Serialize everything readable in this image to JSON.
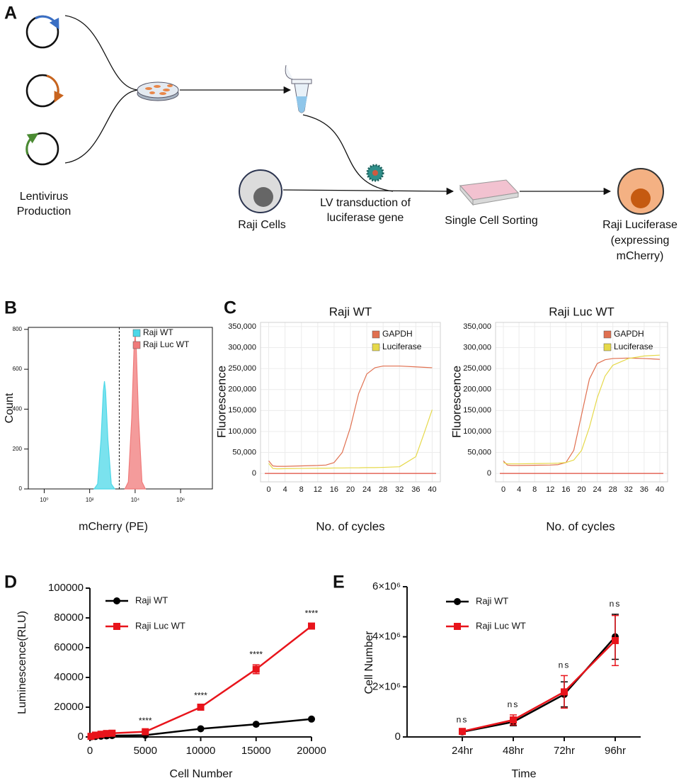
{
  "panel_labels": [
    "A",
    "B",
    "C",
    "D",
    "E"
  ],
  "diagram": {
    "source_label": [
      "Lentivirus",
      "Production"
    ],
    "raji_cells": "Raji Cells",
    "transduction_label": [
      "LV transduction of",
      "luciferase gene"
    ],
    "sorting_label": "Single Cell Sorting",
    "result_label": [
      "Raji Luciferase",
      "(expressing",
      "mCherry)"
    ]
  },
  "chart_data": [
    {
      "type": "density",
      "xlabel": "mCherry (PE)",
      "ylabel": "Count",
      "xscale": "log",
      "xlim": [
        0.2,
        25000000
      ],
      "xticks": [
        {
          "value": 1,
          "label": "10⁰"
        },
        {
          "value": 100,
          "label": "10²"
        },
        {
          "value": 10000,
          "label": "10⁴"
        },
        {
          "value": 1000000,
          "label": "10⁶"
        }
      ],
      "ylim": [
        0,
        810
      ],
      "yticks": [
        0,
        200,
        400,
        600,
        800
      ],
      "gate": 2000,
      "legend": "upper right",
      "series": [
        {
          "name": "Raji WT",
          "color": "#4dd8e8",
          "x": [
            158,
            224,
            316,
            398,
            447,
            501,
            631,
            891,
            1259
          ],
          "values": [
            0,
            25,
            250,
            490,
            540,
            490,
            250,
            25,
            0
          ]
        },
        {
          "name": "Raji Luc WT",
          "color": "#f07a7a",
          "x": [
            3548,
            5012,
            7079,
            8913,
            10000,
            11220,
            14125,
            19953,
            28184
          ],
          "values": [
            0,
            35,
            355,
            700,
            770,
            700,
            355,
            35,
            0
          ]
        }
      ]
    },
    {
      "type": "line",
      "title": "Raji WT",
      "xlabel": "No. of cycles",
      "ylabel": "Fluorescence",
      "xlim": [
        -2,
        42
      ],
      "xticks": [
        0,
        4,
        8,
        12,
        16,
        20,
        24,
        28,
        32,
        36,
        40
      ],
      "ylim": [
        -20000,
        360000
      ],
      "yticks": [
        0,
        {
          "value": 50000,
          "label": "50,000"
        },
        {
          "value": 100000,
          "label": "100,000"
        },
        {
          "value": 150000,
          "label": "150,000"
        },
        {
          "value": 200000,
          "label": "200,000"
        },
        {
          "value": 250000,
          "label": "250,000"
        },
        {
          "value": 300000,
          "label": "300,000"
        },
        {
          "value": 350000,
          "label": "350,000"
        }
      ],
      "grid": true,
      "legend": "upper right",
      "reference_line": 0,
      "reference_color": "#e04a3a",
      "x": [
        0,
        1,
        2,
        4,
        8,
        12,
        14,
        16,
        18,
        20,
        22,
        24,
        26,
        28,
        32,
        36,
        38,
        40
      ],
      "series": [
        {
          "name": "GAPDH",
          "color": "#e07050",
          "values": [
            30000,
            18000,
            17000,
            17000,
            18000,
            19000,
            20000,
            26000,
            50000,
            110000,
            190000,
            237000,
            252000,
            256000,
            256000,
            254000,
            253000,
            252000
          ]
        },
        {
          "name": "Luciferase",
          "color": "#e6d94a",
          "values": [
            24000,
            12000,
            11000,
            11500,
            12000,
            12500,
            12500,
            13000,
            13000,
            13500,
            13500,
            14000,
            14000,
            14500,
            16000,
            40000,
            95000,
            152000
          ]
        }
      ]
    },
    {
      "type": "line",
      "title": "Raji Luc WT",
      "xlabel": "No. of cycles",
      "ylabel": "Fluorescence",
      "xlim": [
        -2,
        42
      ],
      "xticks": [
        0,
        4,
        8,
        12,
        16,
        20,
        24,
        28,
        32,
        36,
        40
      ],
      "ylim": [
        -20000,
        360000
      ],
      "yticks": [
        0,
        {
          "value": 50000,
          "label": "50,000"
        },
        {
          "value": 100000,
          "label": "100,000"
        },
        {
          "value": 150000,
          "label": "150,000"
        },
        {
          "value": 200000,
          "label": "200,000"
        },
        {
          "value": 250000,
          "label": "250,000"
        },
        {
          "value": 300000,
          "label": "300,000"
        },
        {
          "value": 350000,
          "label": "350,000"
        }
      ],
      "grid": true,
      "legend": "upper right",
      "reference_line": 0,
      "reference_color": "#e04a3a",
      "x": [
        0,
        1,
        2,
        4,
        8,
        12,
        14,
        16,
        18,
        20,
        22,
        24,
        26,
        28,
        32,
        36,
        38,
        40
      ],
      "series": [
        {
          "name": "GAPDH",
          "color": "#e07050",
          "values": [
            30000,
            20000,
            19000,
            19000,
            19500,
            20000,
            21000,
            26000,
            55000,
            140000,
            225000,
            262000,
            271000,
            274000,
            275000,
            274000,
            273000,
            272000
          ]
        },
        {
          "name": "Luciferase",
          "color": "#e6d94a",
          "values": [
            26000,
            23000,
            23000,
            23000,
            23500,
            24000,
            24500,
            26000,
            32000,
            55000,
            110000,
            180000,
            232000,
            258000,
            274000,
            280000,
            281000,
            282000
          ]
        }
      ]
    },
    {
      "type": "line",
      "xlabel": "Cell Number",
      "ylabel": "Luminescence(RLU)",
      "xlim": [
        0,
        20000
      ],
      "xticks": [
        0,
        5000,
        10000,
        15000,
        20000
      ],
      "ylim": [
        0,
        100000
      ],
      "yticks": [
        0,
        20000,
        40000,
        60000,
        80000,
        100000
      ],
      "legend": "upper left",
      "x": [
        100,
        500,
        1000,
        1500,
        2000,
        5000,
        10000,
        15000,
        20000
      ],
      "annotations": [
        null,
        null,
        null,
        null,
        null,
        "****",
        "****",
        "****",
        "****"
      ],
      "series": [
        {
          "name": "Raji WT",
          "color": "#000000",
          "marker": "circle",
          "values": [
            100,
            300,
            500,
            700,
            900,
            1200,
            5500,
            8500,
            12000
          ]
        },
        {
          "name": "Raji Luc WT",
          "color": "#e8141b",
          "marker": "square",
          "values": [
            400,
            1200,
            1800,
            2300,
            2500,
            3500,
            20000,
            45500,
            74500
          ],
          "errors": [
            200,
            300,
            300,
            300,
            300,
            400,
            800,
            3000,
            1500
          ]
        }
      ]
    },
    {
      "type": "line",
      "xlabel": "Time",
      "ylabel": "Cell Number",
      "categories": [
        "24hr",
        "48hr",
        "72hr",
        "96hr"
      ],
      "ylim": [
        0,
        6000000
      ],
      "yticks": [
        0,
        {
          "value": 2000000,
          "label": "2×10⁶"
        },
        {
          "value": 4000000,
          "label": "4×10⁶"
        },
        {
          "value": 6000000,
          "label": "6×10⁶"
        }
      ],
      "legend": "upper left",
      "annotations": [
        "ns",
        "ns",
        "ns",
        "ns"
      ],
      "series": [
        {
          "name": "Raji WT",
          "color": "#000000",
          "marker": "circle",
          "values": [
            200000,
            600000,
            1700000,
            4000000
          ],
          "errors": [
            50000,
            150000,
            500000,
            900000
          ]
        },
        {
          "name": "Raji Luc WT",
          "color": "#e8141b",
          "marker": "square",
          "values": [
            220000,
            680000,
            1800000,
            3850000
          ],
          "errors": [
            60000,
            200000,
            650000,
            1000000
          ]
        }
      ]
    }
  ]
}
